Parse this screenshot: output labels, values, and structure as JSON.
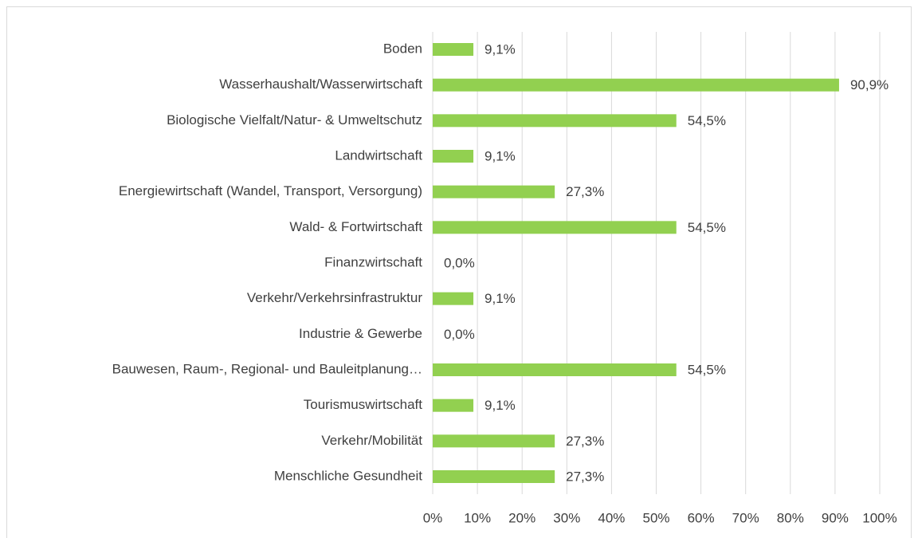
{
  "chart_data": {
    "type": "bar",
    "orientation": "horizontal",
    "categories": [
      "Boden",
      "Wasserhaushalt/Wasserwirtschaft",
      "Biologische Vielfalt/Natur- & Umweltschutz",
      "Landwirtschaft",
      "Energiewirtschaft (Wandel, Transport, Versorgung)",
      "Wald- & Fortwirtschaft",
      "Finanzwirtschaft",
      "Verkehr/Verkehrsinfrastruktur",
      "Industrie & Gewerbe",
      "Bauwesen, Raum-, Regional- und Bauleitplanung…",
      "Tourismuswirtschaft",
      "Verkehr/Mobilität",
      "Menschliche Gesundheit"
    ],
    "values": [
      9.1,
      90.9,
      54.5,
      9.1,
      27.3,
      54.5,
      0.0,
      9.1,
      0.0,
      54.5,
      9.1,
      27.3,
      27.3
    ],
    "value_labels": [
      "9,1%",
      "90,9%",
      "54,5%",
      "9,1%",
      "27,3%",
      "54,5%",
      "0,0%",
      "9,1%",
      "0,0%",
      "54,5%",
      "9,1%",
      "27,3%",
      "27,3%"
    ],
    "color": "#92d050",
    "xlim": [
      0,
      100
    ],
    "xticks": [
      {
        "value": 0,
        "label": "0%"
      },
      {
        "value": 10,
        "label": "10%"
      },
      {
        "value": 20,
        "label": "20%"
      },
      {
        "value": 30,
        "label": "30%"
      },
      {
        "value": 40,
        "label": "40%"
      },
      {
        "value": 50,
        "label": "50%"
      },
      {
        "value": 60,
        "label": "60%"
      },
      {
        "value": 70,
        "label": "70%"
      },
      {
        "value": 80,
        "label": "80%"
      },
      {
        "value": 90,
        "label": "90%"
      },
      {
        "value": 100,
        "label": "100%"
      }
    ],
    "grid": true
  }
}
